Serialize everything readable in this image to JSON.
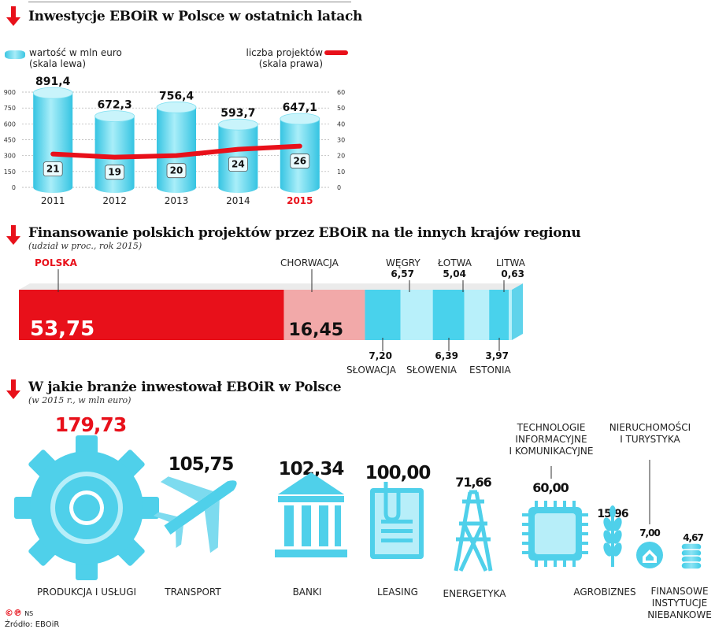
{
  "section1": {
    "title": "Inwestycje EBOiR w Polsce w ostatnich latach",
    "legend_left": [
      "wartość w mln euro",
      "(skala lewa)"
    ],
    "legend_right": [
      "liczba projektów",
      "(skala prawa)"
    ]
  },
  "chart_data": [
    {
      "type": "bar",
      "title": "Inwestycje EBOiR w Polsce w ostatnich latach",
      "categories": [
        "2011",
        "2012",
        "2013",
        "2014",
        "2015"
      ],
      "highlight_category": "2015",
      "series": [
        {
          "name": "wartość w mln euro (skala lewa)",
          "values": [
            891.4,
            672.3,
            756.4,
            593.7,
            647.1
          ],
          "labels": [
            "891,4",
            "672,3",
            "756,4",
            "593,7",
            "647,1"
          ],
          "color": "#4fd0ea"
        },
        {
          "name": "liczba projektów (skala prawa)",
          "type": "line",
          "values": [
            21,
            19,
            20,
            24,
            26
          ],
          "color": "#e8101a"
        }
      ],
      "y_left": {
        "ticks": [
          "0",
          "150",
          "300",
          "450",
          "600",
          "750",
          "900"
        ],
        "lim": [
          0,
          900
        ]
      },
      "y_right": {
        "ticks": [
          "0",
          "10",
          "20",
          "30",
          "40",
          "50",
          "60"
        ],
        "lim": [
          0,
          60
        ]
      }
    },
    {
      "type": "stacked-bar",
      "title": "Finansowanie polskich projektów przez EBOiR na tle innych krajów regionu",
      "subtitle": "(udział w proc., rok 2015)",
      "segments": [
        {
          "name": "POLSKA",
          "value": 53.75,
          "label": "53,75",
          "color": "#e8101a"
        },
        {
          "name": "CHORWACJA",
          "value": 16.45,
          "label": "16,45",
          "color": "#f2a9a9"
        },
        {
          "name": "SŁOWACJA",
          "value": 7.2,
          "label": "7,20",
          "color": "#49d2ec"
        },
        {
          "name": "WĘGRY",
          "value": 6.57,
          "label": "6,57",
          "color": "#b8f0fa"
        },
        {
          "name": "SŁOWENIA",
          "value": 6.39,
          "label": "6,39",
          "color": "#49d2ec"
        },
        {
          "name": "ŁOTWA",
          "value": 5.04,
          "label": "5,04",
          "color": "#b8f0fa"
        },
        {
          "name": "ESTONIA",
          "value": 3.97,
          "label": "3,97",
          "color": "#49d2ec"
        },
        {
          "name": "LITWA",
          "value": 0.63,
          "label": "0,63",
          "color": "#b8f0fa"
        }
      ]
    },
    {
      "type": "bar",
      "title": "W jakie branże inwestował EBOiR w Polsce",
      "subtitle": "(w 2015 r., w mln euro)",
      "categories": [
        "PRODUKCJA I USŁUGI",
        "TRANSPORT",
        "BANKI",
        "LEASING",
        "ENERGETYKA",
        "TECHNOLOGIE INFORMACYJNE I KOMUNIKACYJNE",
        "AGROBIZNES",
        "NIERUCHOMOŚCI I TURYSTYKA",
        "FINANSOWE INSTYTUCJE NIEBANKOWE"
      ],
      "values": [
        179.73,
        105.75,
        102.34,
        100.0,
        71.66,
        60.0,
        15.96,
        7.0,
        4.67
      ],
      "labels": [
        "179,73",
        "105,75",
        "102,34",
        "100,00",
        "71,66",
        "60,00",
        "15,96",
        "7,00",
        "4,67"
      ],
      "icons": [
        "gear-icon",
        "airplane-icon",
        "bank-icon",
        "document-icon",
        "power-tower-icon",
        "chip-icon",
        "wheat-icon",
        "house-icon",
        "coins-icon"
      ]
    }
  ],
  "section2": {
    "title": "Finansowanie polskich projektów przez EBOiR na tle innych krajów regionu",
    "subtitle": "(udział w proc., rok 2015)"
  },
  "section3": {
    "title": "W jakie branże inwestował EBOiR w Polsce",
    "subtitle": "(w 2015 r., w mln euro)",
    "cat_lines": {
      "tech": [
        "TECHNOLOGIE",
        "INFORMACYJNE",
        "I KOMUNIKACYJNE"
      ],
      "nier": [
        "NIERUCHOMOŚCI",
        "I TURYSTYKA"
      ],
      "fin": [
        "FINANSOWE",
        "INSTYTUCJE",
        "NIEBANKOWE"
      ]
    }
  },
  "footer": {
    "logo": "©℗",
    "author": "NS",
    "source": "Źródło: EBOiR"
  },
  "colors": {
    "accent": "#e8101a",
    "cyan": "#4fd0ea",
    "light_cyan": "#b8f0fa",
    "pink": "#f2a9a9"
  }
}
